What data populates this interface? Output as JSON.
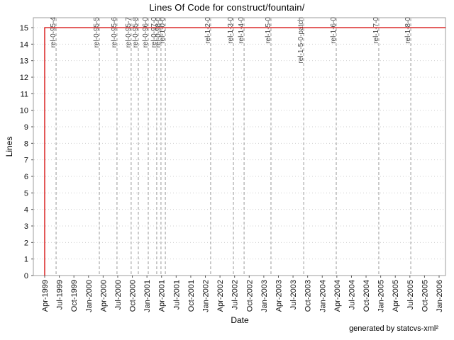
{
  "footer": {
    "credit": "generated by statcvs-xml²"
  },
  "chart_data": {
    "type": "line",
    "title": "Lines Of Code for construct/fountain/",
    "xlabel": "Date",
    "ylabel": "Lines",
    "ylim": [
      0,
      15
    ],
    "yticks": [
      0,
      1,
      2,
      3,
      4,
      5,
      6,
      7,
      8,
      9,
      10,
      11,
      12,
      13,
      14,
      15
    ],
    "xticks": [
      "Apr-1999",
      "Jul-1999",
      "Oct-1999",
      "Jan-2000",
      "Apr-2000",
      "Jul-2000",
      "Oct-2000",
      "Jan-2001",
      "Apr-2001",
      "Jul-2001",
      "Oct-2001",
      "Jan-2002",
      "Apr-2002",
      "Jul-2002",
      "Oct-2002",
      "Jan-2003",
      "Apr-2003",
      "Jul-2003",
      "Oct-2003",
      "Jan-2004",
      "Apr-2004",
      "Jul-2004",
      "Oct-2004",
      "Jan-2005",
      "Apr-2005",
      "Jul-2005",
      "Oct-2005",
      "Jan-2006"
    ],
    "x_unit": "quarters since Apr-1999",
    "grid": {
      "horizontal": "dotted",
      "vertical": "release markers only (dashed)"
    },
    "legend": "none",
    "series": [
      {
        "name": "Lines of Code",
        "color": "#d40000",
        "points": [
          [
            0,
            0
          ],
          [
            0,
            15
          ],
          [
            27.45,
            15
          ]
        ]
      }
    ],
    "releases": [
      {
        "label": "rel-0-95-4",
        "q": 0.78
      },
      {
        "label": "rel-0-95-5",
        "q": 3.74
      },
      {
        "label": "rel-0-95-6",
        "q": 4.95
      },
      {
        "label": "rel-0-95-7",
        "q": 5.92
      },
      {
        "label": "rel-0-95-8",
        "q": 6.41
      },
      {
        "label": "rel-0-96-0",
        "q": 7.09
      },
      {
        "label": "rel-0-97-0",
        "q": 7.67
      },
      {
        "label": "rel-0-98-0",
        "q": 7.96
      },
      {
        "label": "rel-1-0-0",
        "q": 8.26
      },
      {
        "label": "rel-1-2-0",
        "q": 11.36
      },
      {
        "label": "rel-1-3-0",
        "q": 12.92
      },
      {
        "label": "rel-1-4-0",
        "q": 13.65
      },
      {
        "label": "rel-1-5-0",
        "q": 15.49
      },
      {
        "label": "rel-1-5-0-patch",
        "q": 17.73
      },
      {
        "label": "rel-1-6-0",
        "q": 19.96
      },
      {
        "label": "rel-1-7-0",
        "q": 22.87
      },
      {
        "label": "rel-1-8-0",
        "q": 25.06
      }
    ],
    "colors": {
      "series_line": "#d40000",
      "release_marker": "#9a9a9a",
      "release_label": "#4a4a4a",
      "h_gridline": "#cfcfcf",
      "plot_border": "#9e9e9e",
      "tick": "#555555"
    }
  }
}
